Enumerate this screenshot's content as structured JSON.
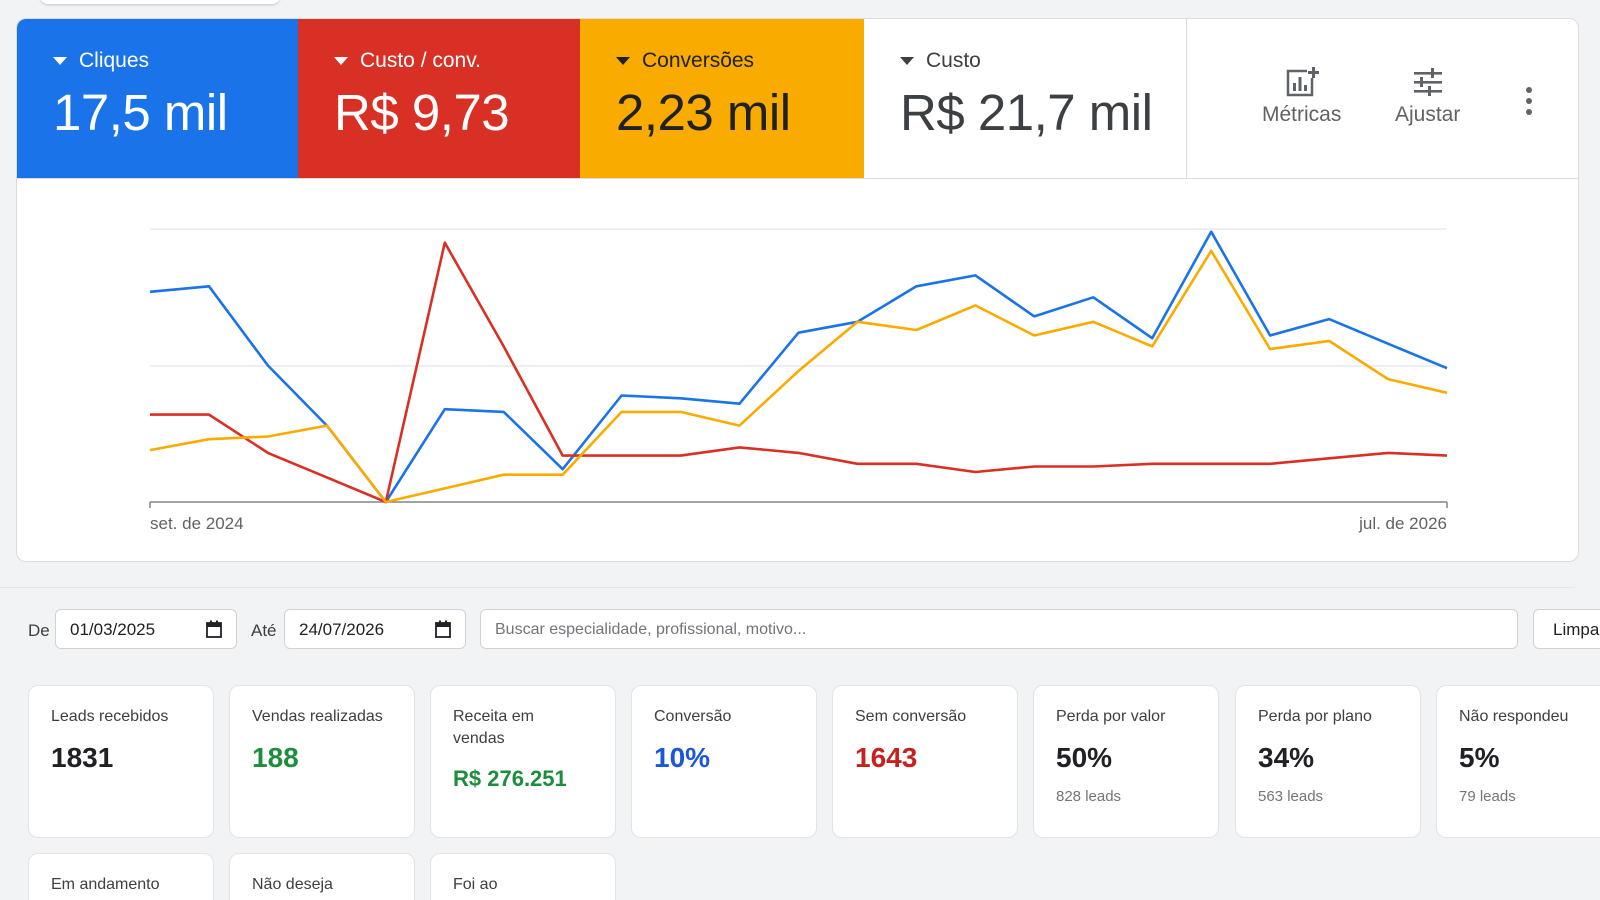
{
  "scorecards": [
    {
      "label": "Cliques",
      "value": "17,5 mil"
    },
    {
      "label": "Custo / conv.",
      "value": "R$ 9,73"
    },
    {
      "label": "Conversões",
      "value": "2,23 mil"
    },
    {
      "label": "Custo",
      "value": "R$ 21,7 mil"
    }
  ],
  "toolbar": {
    "metricas_label": "Métricas",
    "ajustar_label": "Ajustar",
    "more_icon": "more-vert-icon"
  },
  "colors": {
    "cliques": "#1a73e8",
    "custo_conv": "#d93025",
    "conversoes": "#f9ab00"
  },
  "chart_data": {
    "type": "line",
    "x_start_label": "set. de 2024",
    "x_end_label": "jul. de 2026",
    "ylim": [
      0,
      100
    ],
    "grid": true,
    "series": [
      {
        "name": "Cliques",
        "color": "#1a73e8",
        "values": [
          77,
          79,
          50,
          28,
          0,
          34,
          33,
          12,
          39,
          38,
          36,
          62,
          66,
          79,
          83,
          68,
          75,
          60,
          99,
          61,
          67,
          58,
          49
        ]
      },
      {
        "name": "Custo / conv.",
        "color": "#d93025",
        "values": [
          32,
          32,
          18,
          9,
          0,
          95,
          57,
          17,
          17,
          17,
          20,
          18,
          14,
          14,
          11,
          13,
          13,
          14,
          14,
          14,
          16,
          18,
          17
        ]
      },
      {
        "name": "Conversões",
        "color": "#f9ab00",
        "values": [
          19,
          23,
          24,
          28,
          0,
          5,
          10,
          10,
          33,
          33,
          28,
          48,
          66,
          63,
          72,
          61,
          66,
          57,
          92,
          56,
          59,
          45,
          40
        ]
      }
    ]
  },
  "filters": {
    "from_label": "De",
    "from_value": "01/03/2025",
    "to_label": "Até",
    "to_value": "24/07/2026",
    "search_placeholder": "Buscar especialidade, profissional, motivo...",
    "clear_label": "Limpar"
  },
  "kpis": [
    {
      "label": "Leads recebidos",
      "value": "1831",
      "sub": ""
    },
    {
      "label": "Vendas realizadas",
      "value": "188",
      "sub": ""
    },
    {
      "label": "Receita em vendas",
      "value": "R$ 276.251",
      "sub": ""
    },
    {
      "label": "Conversão",
      "value": "10%",
      "sub": ""
    },
    {
      "label": "Sem conversão",
      "value": "1643",
      "sub": ""
    },
    {
      "label": "Perda por valor",
      "value": "50%",
      "sub": "828 leads"
    },
    {
      "label": "Perda por plano",
      "value": "34%",
      "sub": "563 leads"
    },
    {
      "label": "Não respondeu",
      "value": "5%",
      "sub": "79 leads"
    },
    {
      "label": "Em andamento",
      "value": "",
      "sub": ""
    },
    {
      "label": "Não deseja",
      "value": "",
      "sub": ""
    },
    {
      "label": "Foi ao",
      "value": "",
      "sub": ""
    }
  ]
}
